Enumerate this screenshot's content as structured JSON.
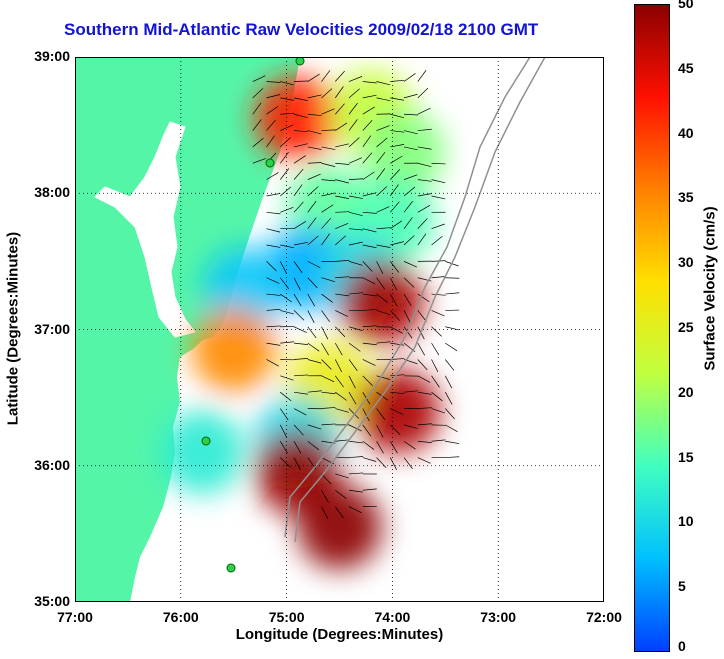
{
  "chart_data": {
    "type": "heatmap",
    "title": "Southern Mid-Atlantic Raw Velocities 2009/02/18 2100 GMT",
    "xlabel": "Longitude (Degrees:Minutes)",
    "ylabel": "Latitude (Degrees:Minutes)",
    "xlim": [
      -77,
      -72
    ],
    "ylim": [
      35,
      39
    ],
    "x_ticks": [
      "77:00",
      "76:00",
      "75:00",
      "74:00",
      "73:00",
      "72:00"
    ],
    "y_ticks": [
      "39:00",
      "38:00",
      "37:00",
      "36:00",
      "35:00"
    ],
    "grid": true,
    "colorbar": {
      "label": "Surface Velocity (cm/s)",
      "range": [
        0,
        50
      ],
      "ticks": [
        "50",
        "45",
        "40",
        "35",
        "30",
        "25",
        "20",
        "15",
        "10",
        "5",
        "0"
      ],
      "colormap": [
        "#0040ff",
        "#00c0ff",
        "#40ffc0",
        "#c0ff40",
        "#ffe000",
        "#ff8000",
        "#ff1000",
        "#8b0000"
      ]
    },
    "colors": {
      "land": "#55f5a8",
      "title": "#1212d8",
      "vectors": "#000000"
    },
    "velocity_regions": [
      {
        "lon": -74.9,
        "lat": 38.55,
        "speed": 42
      },
      {
        "lon": -74.2,
        "lat": 38.6,
        "speed": 22
      },
      {
        "lon": -73.9,
        "lat": 38.3,
        "speed": 18
      },
      {
        "lon": -74.6,
        "lat": 37.9,
        "speed": 16
      },
      {
        "lon": -74.0,
        "lat": 37.8,
        "speed": 15
      },
      {
        "lon": -74.8,
        "lat": 37.45,
        "speed": 6
      },
      {
        "lon": -75.4,
        "lat": 37.3,
        "speed": 8
      },
      {
        "lon": -74.3,
        "lat": 37.4,
        "speed": 10
      },
      {
        "lon": -74.1,
        "lat": 37.2,
        "speed": 48
      },
      {
        "lon": -75.5,
        "lat": 36.85,
        "speed": 35
      },
      {
        "lon": -74.6,
        "lat": 36.6,
        "speed": 26
      },
      {
        "lon": -73.95,
        "lat": 36.4,
        "speed": 48
      },
      {
        "lon": -74.9,
        "lat": 36.2,
        "speed": 10
      },
      {
        "lon": -75.8,
        "lat": 36.1,
        "speed": 12
      },
      {
        "lon": -74.9,
        "lat": 35.95,
        "speed": 49
      },
      {
        "lon": -74.5,
        "lat": 35.55,
        "speed": 50
      }
    ]
  }
}
